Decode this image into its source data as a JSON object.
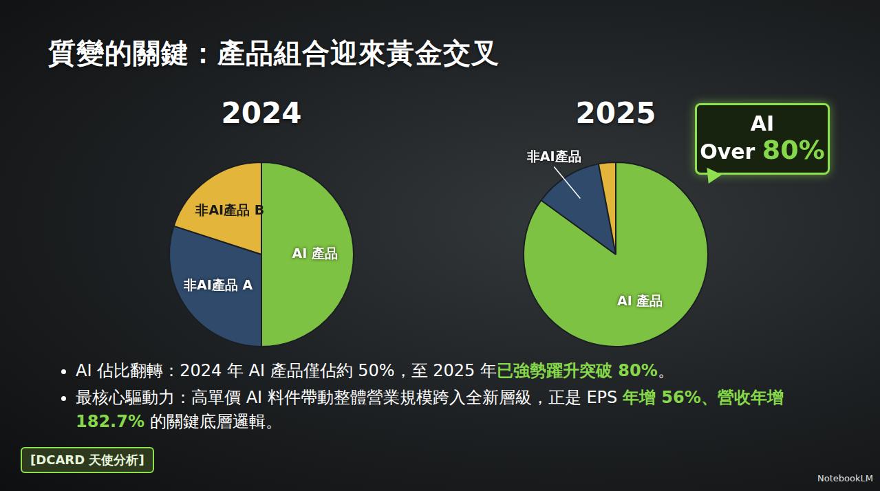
{
  "title": "質變的關鍵：產品組合迎來黃金交叉",
  "chart_data": [
    {
      "type": "pie",
      "title": "2024",
      "categories": [
        "AI 產品",
        "非AI產品 A",
        "非AI產品 B"
      ],
      "values": [
        50,
        30,
        20
      ],
      "colors": [
        "#7dc242",
        "#2f4a6b",
        "#e3b53b"
      ]
    },
    {
      "type": "pie",
      "title": "2025",
      "categories": [
        "AI 產品",
        "非AI產品",
        null
      ],
      "values": [
        85,
        12,
        3
      ],
      "colors": [
        "#7dc242",
        "#2f4a6b",
        "#e3b53b"
      ]
    }
  ],
  "callout": {
    "lines": [
      [
        {
          "text": "AI"
        }
      ],
      [
        {
          "text": "Over "
        },
        {
          "text": "80%",
          "highlight": true
        }
      ]
    ]
  },
  "bullets": [
    [
      {
        "text": "AI 佔比翻轉：2024 年 AI 產品僅佔約 50%，至 2025 年"
      },
      {
        "text": "已強勢躍升突破 80%",
        "highlight": true
      },
      {
        "text": "。"
      }
    ],
    [
      {
        "text": "最核心驅動力：高單價 AI 料件帶動整體營業規模跨入全新層級，正是 EPS "
      },
      {
        "text": "年增 56%、營收年增 182.7%",
        "highlight": true
      },
      {
        "text": " 的關鍵底層邏輯。"
      }
    ]
  ],
  "tag": "[DCARD 天使分析]",
  "watermark": "NotebookLM"
}
